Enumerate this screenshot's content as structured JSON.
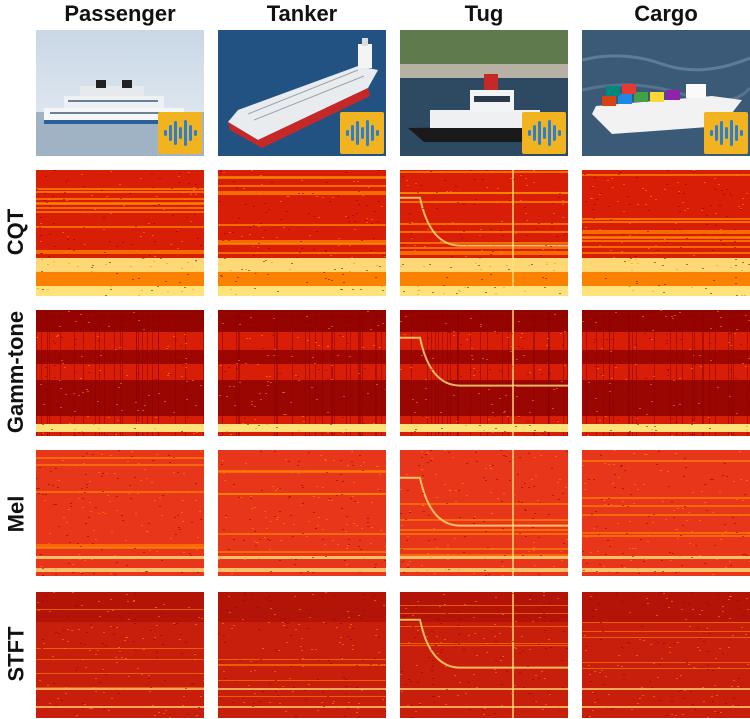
{
  "columns": [
    {
      "label": "Passenger",
      "ship": "passenger-ferry"
    },
    {
      "label": "Tanker",
      "ship": "oil-tanker"
    },
    {
      "label": "Tug",
      "ship": "tugboat"
    },
    {
      "label": "Cargo",
      "ship": "cargo-ship"
    }
  ],
  "rows": [
    {
      "label": "CQT",
      "style": "cqt"
    },
    {
      "label": "Gamm-tone",
      "style": "gamma"
    },
    {
      "label": "Mel",
      "style": "mel"
    },
    {
      "label": "STFT",
      "style": "stft"
    }
  ],
  "icons": {
    "badge": "audio-waveform-icon"
  },
  "colors": {
    "badge_bg": "#f2b320",
    "waveform": "#2a7fd0",
    "dark_red": "#8b0000",
    "red": "#d81e06",
    "orange": "#ff8c00",
    "yellow": "#ffe37a"
  }
}
